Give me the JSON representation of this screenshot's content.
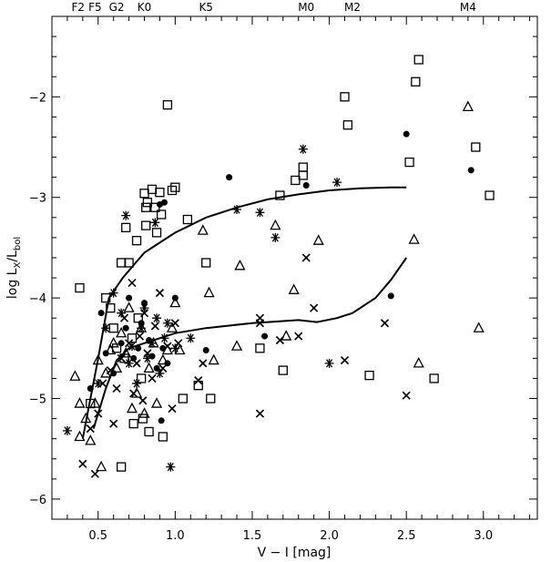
{
  "chart_data": {
    "type": "scatter",
    "xlabel": "V − I [mag]",
    "ylabel_main": "log L",
    "ylabel_sub1": "X",
    "ylabel_slash": "/L",
    "ylabel_sub2": "bol",
    "xlim": [
      0.2,
      3.35
    ],
    "ylim": [
      -6.2,
      -1.2
    ],
    "xticks": [
      0.5,
      1.0,
      1.5,
      2.0,
      2.5,
      3.0
    ],
    "xtick_labels": [
      "0.5",
      "1.0",
      "1.5",
      "2.0",
      "2.5",
      "3.0"
    ],
    "yticks": [
      -6,
      -5,
      -4,
      -3,
      -2
    ],
    "ytick_labels": [
      "−6",
      "−5",
      "−4",
      "−3",
      "−2"
    ],
    "xminor": 0.1,
    "yminor": 0.2,
    "spectral_types": [
      {
        "label": "F2",
        "x": 0.37
      },
      {
        "label": "F5",
        "x": 0.48
      },
      {
        "label": "G2",
        "x": 0.62
      },
      {
        "label": "K0",
        "x": 0.8
      },
      {
        "label": "K5",
        "x": 1.2
      },
      {
        "label": "M0",
        "x": 1.85
      },
      {
        "label": "M2",
        "x": 2.15
      },
      {
        "label": "M4",
        "x": 2.9
      }
    ],
    "curves": [
      {
        "points": [
          [
            0.4,
            -5.4
          ],
          [
            0.5,
            -4.6
          ],
          [
            0.57,
            -4.0
          ],
          [
            0.66,
            -3.8
          ],
          [
            0.8,
            -3.55
          ],
          [
            0.9,
            -3.45
          ],
          [
            1.0,
            -3.35
          ],
          [
            1.2,
            -3.2
          ],
          [
            1.4,
            -3.1
          ],
          [
            1.6,
            -3.02
          ],
          [
            1.8,
            -2.97
          ],
          [
            2.0,
            -2.93
          ],
          [
            2.2,
            -2.91
          ],
          [
            2.4,
            -2.9
          ],
          [
            2.5,
            -2.9
          ]
        ]
      },
      {
        "points": [
          [
            0.47,
            -5.3
          ],
          [
            0.55,
            -4.9
          ],
          [
            0.62,
            -4.62
          ],
          [
            0.7,
            -4.5
          ],
          [
            0.8,
            -4.45
          ],
          [
            0.9,
            -4.4
          ],
          [
            1.0,
            -4.35
          ],
          [
            1.2,
            -4.3
          ],
          [
            1.5,
            -4.25
          ],
          [
            1.8,
            -4.22
          ],
          [
            1.92,
            -4.24
          ],
          [
            2.05,
            -4.2
          ],
          [
            2.15,
            -4.15
          ],
          [
            2.3,
            -4.0
          ],
          [
            2.4,
            -3.82
          ],
          [
            2.5,
            -3.6
          ]
        ]
      }
    ],
    "series": [
      {
        "marker": "square",
        "points": [
          [
            0.38,
            -3.9
          ],
          [
            0.45,
            -5.05
          ],
          [
            0.55,
            -4.0
          ],
          [
            0.58,
            -4.1
          ],
          [
            0.6,
            -4.3
          ],
          [
            0.62,
            -4.5
          ],
          [
            0.65,
            -3.65
          ],
          [
            0.65,
            -5.68
          ],
          [
            0.67,
            -4.6
          ],
          [
            0.68,
            -3.3
          ],
          [
            0.7,
            -3.65
          ],
          [
            0.72,
            -4.4
          ],
          [
            0.73,
            -5.25
          ],
          [
            0.75,
            -3.43
          ],
          [
            0.76,
            -4.2
          ],
          [
            0.78,
            -4.8
          ],
          [
            0.79,
            -5.2
          ],
          [
            0.8,
            -2.96
          ],
          [
            0.81,
            -3.1
          ],
          [
            0.81,
            -3.28
          ],
          [
            0.82,
            -3.05
          ],
          [
            0.83,
            -5.33
          ],
          [
            0.85,
            -2.92
          ],
          [
            0.87,
            -3.1
          ],
          [
            0.88,
            -3.35
          ],
          [
            0.9,
            -2.95
          ],
          [
            0.91,
            -3.17
          ],
          [
            0.92,
            -5.38
          ],
          [
            0.95,
            -2.08
          ],
          [
            0.98,
            -2.93
          ],
          [
            1.0,
            -2.9
          ],
          [
            1.05,
            -5.0
          ],
          [
            1.08,
            -3.22
          ],
          [
            1.15,
            -4.87
          ],
          [
            1.2,
            -3.65
          ],
          [
            1.23,
            -5.0
          ],
          [
            1.55,
            -4.5
          ],
          [
            1.68,
            -2.98
          ],
          [
            1.7,
            -4.72
          ],
          [
            1.78,
            -2.83
          ],
          [
            1.83,
            -2.7
          ],
          [
            1.83,
            -2.78
          ],
          [
            2.1,
            -2.0
          ],
          [
            2.12,
            -2.28
          ],
          [
            2.26,
            -4.77
          ],
          [
            2.52,
            -2.65
          ],
          [
            2.56,
            -1.85
          ],
          [
            2.58,
            -1.63
          ],
          [
            2.68,
            -4.8
          ],
          [
            2.95,
            -2.5
          ],
          [
            3.04,
            -2.98
          ]
        ]
      },
      {
        "marker": "triangle",
        "points": [
          [
            0.35,
            -4.78
          ],
          [
            0.38,
            -5.05
          ],
          [
            0.38,
            -5.38
          ],
          [
            0.42,
            -5.2
          ],
          [
            0.45,
            -5.42
          ],
          [
            0.48,
            -5.05
          ],
          [
            0.5,
            -4.62
          ],
          [
            0.52,
            -5.68
          ],
          [
            0.55,
            -4.75
          ],
          [
            0.58,
            -4.52
          ],
          [
            0.6,
            -4.45
          ],
          [
            0.62,
            -4.7
          ],
          [
            0.65,
            -4.35
          ],
          [
            0.68,
            -4.55
          ],
          [
            0.7,
            -4.1
          ],
          [
            0.72,
            -5.1
          ],
          [
            0.75,
            -4.95
          ],
          [
            0.78,
            -4.3
          ],
          [
            0.8,
            -5.15
          ],
          [
            0.83,
            -4.7
          ],
          [
            0.86,
            -4.45
          ],
          [
            0.88,
            -5.05
          ],
          [
            0.92,
            -4.62
          ],
          [
            0.95,
            -4.52
          ],
          [
            0.98,
            -4.3
          ],
          [
            1.0,
            -4.05
          ],
          [
            1.03,
            -4.52
          ],
          [
            1.18,
            -3.33
          ],
          [
            1.22,
            -3.95
          ],
          [
            1.25,
            -4.62
          ],
          [
            1.4,
            -4.48
          ],
          [
            1.42,
            -3.68
          ],
          [
            1.65,
            -3.28
          ],
          [
            1.72,
            -4.38
          ],
          [
            1.77,
            -3.92
          ],
          [
            1.93,
            -3.43
          ],
          [
            2.55,
            -3.42
          ],
          [
            2.58,
            -4.65
          ],
          [
            2.9,
            -2.1
          ],
          [
            2.97,
            -4.3
          ]
        ]
      },
      {
        "marker": "cross",
        "points": [
          [
            0.4,
            -5.65
          ],
          [
            0.45,
            -5.3
          ],
          [
            0.48,
            -5.75
          ],
          [
            0.5,
            -5.15
          ],
          [
            0.53,
            -4.85
          ],
          [
            0.58,
            -4.72
          ],
          [
            0.6,
            -5.25
          ],
          [
            0.62,
            -4.9
          ],
          [
            0.65,
            -4.6
          ],
          [
            0.67,
            -4.2
          ],
          [
            0.7,
            -4.45
          ],
          [
            0.72,
            -3.85
          ],
          [
            0.73,
            -4.95
          ],
          [
            0.75,
            -4.65
          ],
          [
            0.77,
            -4.38
          ],
          [
            0.79,
            -5.02
          ],
          [
            0.8,
            -4.15
          ],
          [
            0.82,
            -4.55
          ],
          [
            0.85,
            -4.8
          ],
          [
            0.87,
            -4.28
          ],
          [
            0.9,
            -3.95
          ],
          [
            0.92,
            -4.7
          ],
          [
            0.95,
            -4.48
          ],
          [
            0.98,
            -5.1
          ],
          [
            1.0,
            -4.25
          ],
          [
            1.02,
            -4.45
          ],
          [
            1.15,
            -4.82
          ],
          [
            1.18,
            -4.65
          ],
          [
            1.55,
            -4.25
          ],
          [
            1.55,
            -4.2
          ],
          [
            1.55,
            -5.15
          ],
          [
            1.68,
            -4.42
          ],
          [
            1.8,
            -4.38
          ],
          [
            1.85,
            -3.6
          ],
          [
            1.9,
            -4.1
          ],
          [
            2.1,
            -4.62
          ],
          [
            2.36,
            -4.25
          ],
          [
            2.5,
            -4.97
          ]
        ]
      },
      {
        "marker": "dot",
        "points": [
          [
            0.52,
            -4.15
          ],
          [
            0.55,
            -4.55
          ],
          [
            0.6,
            -4.75
          ],
          [
            0.65,
            -4.45
          ],
          [
            0.68,
            -4.3
          ],
          [
            0.7,
            -4.0
          ],
          [
            0.73,
            -4.6
          ],
          [
            0.76,
            -4.5
          ],
          [
            0.78,
            -4.25
          ],
          [
            0.8,
            -4.05
          ],
          [
            0.83,
            -4.42
          ],
          [
            0.85,
            -4.58
          ],
          [
            0.88,
            -4.7
          ],
          [
            0.9,
            -3.07
          ],
          [
            0.91,
            -5.22
          ],
          [
            0.92,
            -4.5
          ],
          [
            0.93,
            -3.05
          ],
          [
            0.95,
            -4.65
          ],
          [
            1.0,
            -4.0
          ],
          [
            1.2,
            -4.52
          ],
          [
            1.35,
            -2.8
          ],
          [
            1.58,
            -4.38
          ],
          [
            1.85,
            -2.88
          ],
          [
            2.4,
            -3.98
          ],
          [
            2.5,
            -2.37
          ],
          [
            2.92,
            -2.73
          ],
          [
            0.45,
            -4.9
          ]
        ]
      },
      {
        "marker": "star",
        "points": [
          [
            0.3,
            -5.32
          ],
          [
            0.5,
            -4.85
          ],
          [
            0.55,
            -4.3
          ],
          [
            0.6,
            -3.95
          ],
          [
            0.65,
            -4.15
          ],
          [
            0.68,
            -3.18
          ],
          [
            0.7,
            -4.65
          ],
          [
            0.72,
            -4.48
          ],
          [
            0.75,
            -4.85
          ],
          [
            0.78,
            -4.3
          ],
          [
            0.8,
            -4.1
          ],
          [
            0.82,
            -4.6
          ],
          [
            0.85,
            -4.45
          ],
          [
            0.87,
            -3.25
          ],
          [
            0.88,
            -4.2
          ],
          [
            0.9,
            -4.75
          ],
          [
            0.93,
            -4.4
          ],
          [
            0.97,
            -5.68
          ],
          [
            1.0,
            -4.5
          ],
          [
            1.1,
            -4.4
          ],
          [
            1.4,
            -3.12
          ],
          [
            1.55,
            -3.15
          ],
          [
            1.65,
            -3.4
          ],
          [
            1.83,
            -2.52
          ],
          [
            2.05,
            -2.85
          ],
          [
            2.0,
            -4.65
          ],
          [
            0.95,
            -4.25
          ]
        ]
      }
    ]
  }
}
